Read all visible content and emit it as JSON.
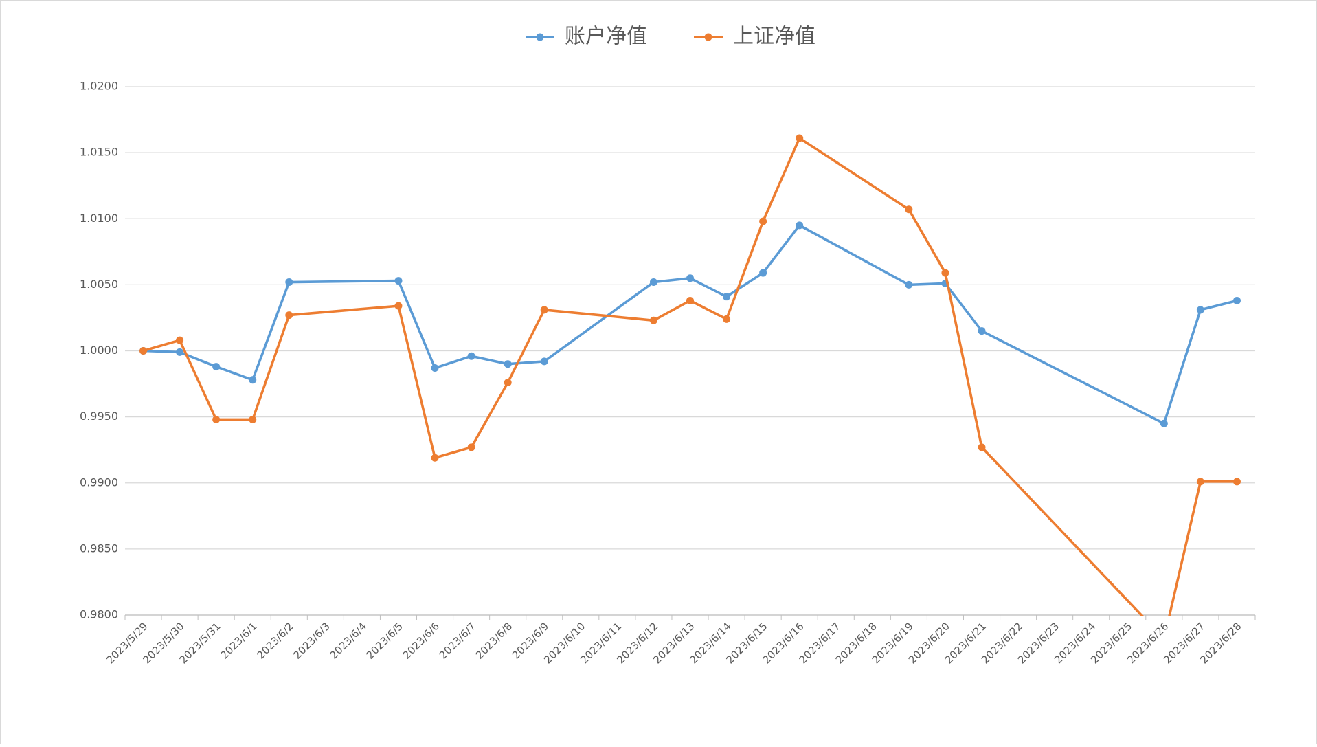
{
  "chart_data": {
    "type": "line",
    "x": [
      "2023/5/29",
      "2023/5/30",
      "2023/5/31",
      "2023/6/1",
      "2023/6/2",
      "2023/6/5",
      "2023/6/6",
      "2023/6/7",
      "2023/6/8",
      "2023/6/9",
      "2023/6/12",
      "2023/6/13",
      "2023/6/14",
      "2023/6/15",
      "2023/6/16",
      "2023/6/19",
      "2023/6/20",
      "2023/6/21",
      "2023/6/26",
      "2023/6/27",
      "2023/6/28"
    ],
    "xticks": [
      "2023/5/29",
      "2023/5/30",
      "2023/5/31",
      "2023/6/1",
      "2023/6/2",
      "2023/6/3",
      "2023/6/4",
      "2023/6/5",
      "2023/6/6",
      "2023/6/7",
      "2023/6/8",
      "2023/6/9",
      "2023/6/10",
      "2023/6/11",
      "2023/6/12",
      "2023/6/13",
      "2023/6/14",
      "2023/6/15",
      "2023/6/16",
      "2023/6/17",
      "2023/6/18",
      "2023/6/19",
      "2023/6/20",
      "2023/6/21",
      "2023/6/22",
      "2023/6/23",
      "2023/6/24",
      "2023/6/25",
      "2023/6/26",
      "2023/6/27",
      "2023/6/28"
    ],
    "series": [
      {
        "name": "账户净值",
        "color": "#5b9bd5",
        "values": [
          1.0,
          0.9999,
          0.9988,
          0.9978,
          1.0052,
          1.0053,
          0.9987,
          0.9996,
          0.999,
          0.9992,
          1.0052,
          1.0055,
          1.0041,
          1.0059,
          1.0095,
          1.005,
          1.0051,
          1.0015,
          0.9945,
          1.0031,
          1.0038
        ]
      },
      {
        "name": "上证净值",
        "color": "#ed7d31",
        "values": [
          1.0,
          1.0008,
          0.9948,
          0.9948,
          1.0027,
          1.0034,
          0.9919,
          0.9927,
          0.9976,
          1.0031,
          1.0023,
          1.0038,
          1.0024,
          1.0098,
          1.0161,
          1.0107,
          1.0059,
          0.9927,
          0.9782,
          0.9901,
          0.9901
        ]
      }
    ],
    "ylim": [
      0.98,
      1.02
    ],
    "yticks": [
      {
        "value": 0.98,
        "label": "0.9800"
      },
      {
        "value": 0.985,
        "label": "0.9850"
      },
      {
        "value": 0.99,
        "label": "0.9900"
      },
      {
        "value": 0.995,
        "label": "0.9950"
      },
      {
        "value": 1.0,
        "label": "1.0000"
      },
      {
        "value": 1.005,
        "label": "1.0050"
      },
      {
        "value": 1.01,
        "label": "1.0100"
      },
      {
        "value": 1.015,
        "label": "1.0150"
      },
      {
        "value": 1.02,
        "label": "1.0200"
      }
    ],
    "grid": true,
    "legend": "top"
  }
}
